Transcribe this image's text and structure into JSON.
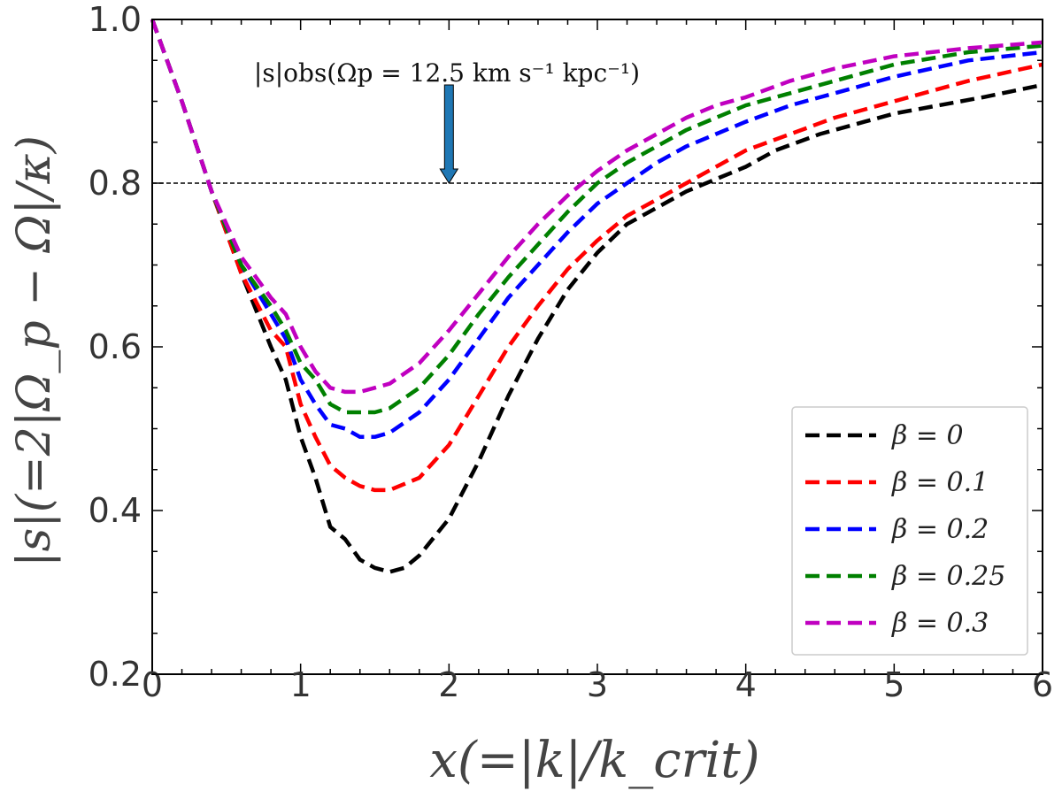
{
  "chart_data": {
    "type": "line",
    "xlabel": "x(=|k|/k_crit)",
    "ylabel": "|s|(=2|Ω_p − Ω|/κ)",
    "xlim": [
      0,
      6
    ],
    "ylim": [
      0.2,
      1.0
    ],
    "xticks": [
      "0",
      "1",
      "2",
      "3",
      "4",
      "5",
      "6"
    ],
    "yticks": [
      "0.2",
      "0.4",
      "0.6",
      "0.8",
      "1.0"
    ],
    "reference_line": {
      "y": 0.8,
      "style": "dashed",
      "color": "#000000"
    },
    "annotation": {
      "text": "|s|obs(Ωp = 12.5 km s⁻¹ kpc⁻¹)",
      "arrow_x": 2.0,
      "arrow_y_start": 0.92,
      "arrow_y_end": 0.8,
      "arrow_color": "#1f77b4"
    },
    "legend_position": "lower-right",
    "series": [
      {
        "name": "β = 0",
        "color": "#000000",
        "x": [
          0,
          0.2,
          0.4,
          0.6,
          0.8,
          0.9,
          1.0,
          1.1,
          1.2,
          1.3,
          1.4,
          1.5,
          1.6,
          1.7,
          1.8,
          2.0,
          2.2,
          2.4,
          2.6,
          2.8,
          3.0,
          3.2,
          3.4,
          3.6,
          3.8,
          4.0,
          4.2,
          4.5,
          4.8,
          5.0,
          5.3,
          5.6,
          6.0
        ],
        "values": [
          1.0,
          0.9,
          0.79,
          0.69,
          0.6,
          0.56,
          0.49,
          0.44,
          0.38,
          0.365,
          0.34,
          0.33,
          0.325,
          0.33,
          0.345,
          0.39,
          0.46,
          0.54,
          0.61,
          0.67,
          0.715,
          0.75,
          0.77,
          0.79,
          0.805,
          0.82,
          0.84,
          0.86,
          0.875,
          0.885,
          0.895,
          0.905,
          0.92
        ]
      },
      {
        "name": "β = 0.1",
        "color": "#ff0000",
        "x": [
          0,
          0.2,
          0.4,
          0.6,
          0.8,
          0.9,
          1.0,
          1.1,
          1.2,
          1.3,
          1.4,
          1.5,
          1.6,
          1.8,
          2.0,
          2.2,
          2.4,
          2.6,
          2.8,
          3.0,
          3.2,
          3.4,
          3.6,
          3.8,
          4.0,
          4.3,
          4.6,
          5.0,
          5.5,
          6.0
        ],
        "values": [
          1.0,
          0.9,
          0.79,
          0.69,
          0.62,
          0.6,
          0.53,
          0.49,
          0.455,
          0.44,
          0.43,
          0.425,
          0.425,
          0.44,
          0.48,
          0.54,
          0.6,
          0.65,
          0.695,
          0.73,
          0.76,
          0.78,
          0.8,
          0.82,
          0.84,
          0.86,
          0.88,
          0.9,
          0.925,
          0.945
        ]
      },
      {
        "name": "β = 0.2",
        "color": "#0000ff",
        "x": [
          0,
          0.2,
          0.4,
          0.6,
          0.8,
          0.9,
          1.0,
          1.1,
          1.2,
          1.3,
          1.4,
          1.5,
          1.6,
          1.8,
          2.0,
          2.2,
          2.4,
          2.6,
          2.8,
          3.0,
          3.2,
          3.4,
          3.6,
          3.8,
          4.0,
          4.3,
          4.6,
          5.0,
          5.5,
          6.0
        ],
        "values": [
          1.0,
          0.9,
          0.79,
          0.7,
          0.64,
          0.61,
          0.56,
          0.53,
          0.505,
          0.5,
          0.49,
          0.49,
          0.495,
          0.52,
          0.56,
          0.61,
          0.66,
          0.7,
          0.74,
          0.775,
          0.8,
          0.825,
          0.845,
          0.86,
          0.875,
          0.895,
          0.91,
          0.93,
          0.95,
          0.96
        ]
      },
      {
        "name": "β = 0.25",
        "color": "#008000",
        "x": [
          0,
          0.2,
          0.4,
          0.6,
          0.8,
          0.9,
          1.0,
          1.1,
          1.2,
          1.3,
          1.4,
          1.5,
          1.6,
          1.8,
          2.0,
          2.2,
          2.4,
          2.6,
          2.8,
          3.0,
          3.2,
          3.4,
          3.6,
          3.8,
          4.0,
          4.3,
          4.6,
          5.0,
          5.5,
          6.0
        ],
        "values": [
          1.0,
          0.9,
          0.79,
          0.7,
          0.65,
          0.62,
          0.58,
          0.56,
          0.53,
          0.52,
          0.52,
          0.52,
          0.525,
          0.55,
          0.59,
          0.64,
          0.685,
          0.725,
          0.765,
          0.8,
          0.825,
          0.845,
          0.865,
          0.88,
          0.895,
          0.91,
          0.925,
          0.945,
          0.96,
          0.968
        ]
      },
      {
        "name": "β = 0.3",
        "color": "#c000c0",
        "x": [
          0,
          0.2,
          0.4,
          0.6,
          0.8,
          0.9,
          1.0,
          1.1,
          1.2,
          1.3,
          1.4,
          1.5,
          1.6,
          1.8,
          2.0,
          2.2,
          2.4,
          2.6,
          2.8,
          3.0,
          3.2,
          3.4,
          3.6,
          3.8,
          4.0,
          4.3,
          4.6,
          5.0,
          5.5,
          6.0
        ],
        "values": [
          1.0,
          0.9,
          0.79,
          0.71,
          0.66,
          0.64,
          0.6,
          0.57,
          0.55,
          0.545,
          0.545,
          0.55,
          0.555,
          0.58,
          0.62,
          0.665,
          0.71,
          0.75,
          0.785,
          0.815,
          0.84,
          0.86,
          0.88,
          0.895,
          0.905,
          0.925,
          0.94,
          0.955,
          0.965,
          0.972
        ]
      }
    ]
  }
}
